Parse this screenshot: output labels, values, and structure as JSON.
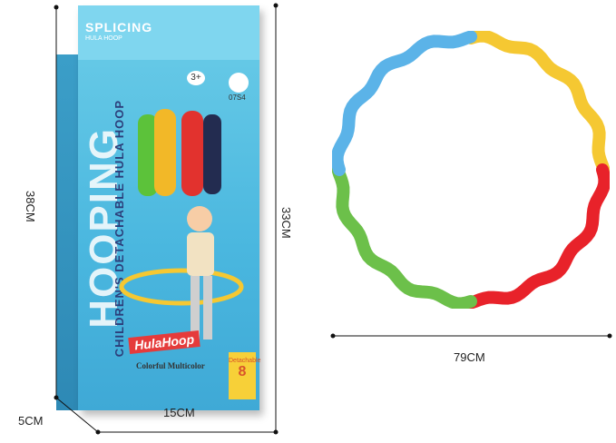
{
  "package": {
    "title": "SPLICING",
    "subtitle": "HULA HOOP",
    "side_text": "HOOPING",
    "product_name": "CHILDREN'S DETACHABLE HULA HOOP",
    "brand": "HulaHoop",
    "color_caption": "Colorful Multicolor",
    "age_badge": "3+",
    "code": "07S4",
    "detachable_label": "Detachable",
    "detachable_count": "8"
  },
  "dimensions": {
    "box_height": "38CM",
    "box_depth": "5CM",
    "box_width": "15CM",
    "hoop_height": "33CM",
    "hoop_diameter": "79CM"
  },
  "hoop_colors": [
    "#f5c832",
    "#e8222a",
    "#6cc04a",
    "#5bb3e8"
  ]
}
